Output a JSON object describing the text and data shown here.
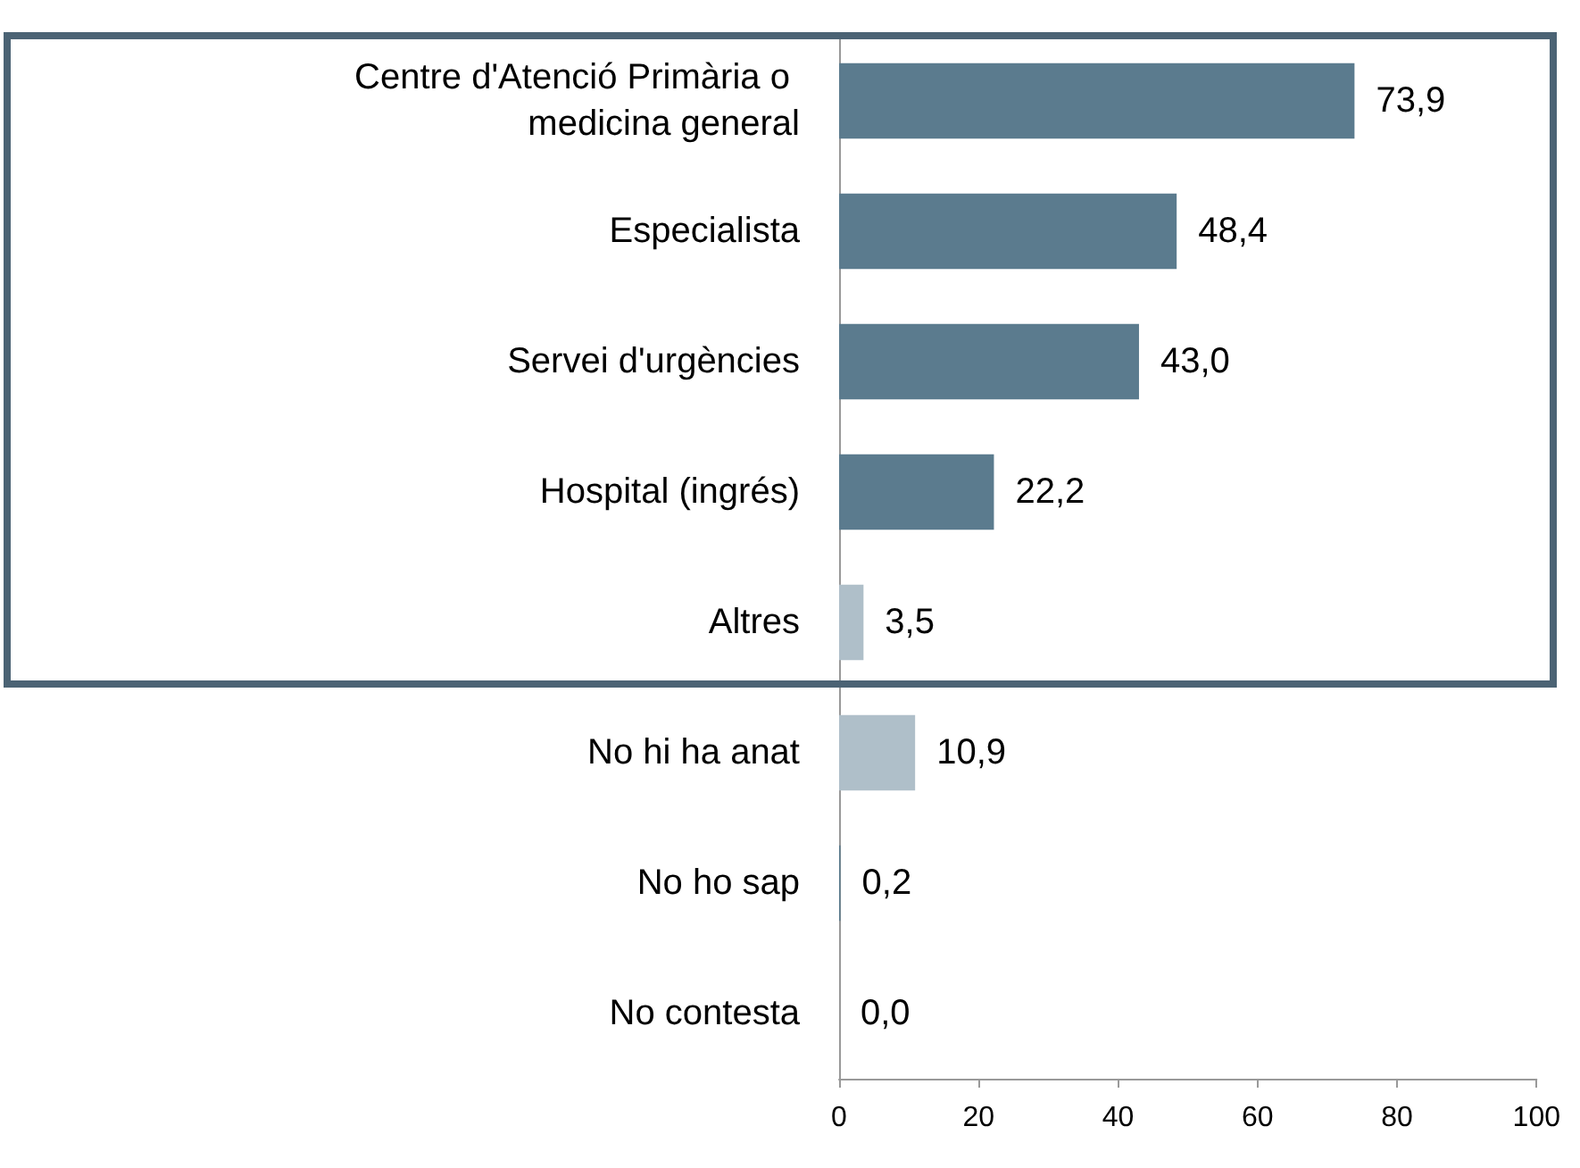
{
  "chart_data": {
    "type": "bar",
    "orientation": "horizontal",
    "categories": [
      "Centre d'Atenció Primària o medicina general",
      "Especialista",
      "Servei d'urgències",
      "Hospital (ingrés)",
      "Altres",
      "No hi ha anat",
      "No ho sap",
      "No contesta"
    ],
    "values": [
      73.9,
      48.4,
      43.0,
      22.2,
      3.5,
      10.9,
      0.2,
      0.0
    ],
    "value_labels": [
      "73,9",
      "48,4",
      "43,0",
      "22,2",
      "3,5",
      "10,9",
      "0,2",
      "0,0"
    ],
    "colors": [
      "#5b7b8e",
      "#5b7b8e",
      "#5b7b8e",
      "#5b7b8e",
      "#afbfc9",
      "#afbfc9",
      "#5b7b8e",
      "#5b7b8e"
    ],
    "xlim": [
      0,
      100
    ],
    "xticks": [
      0,
      20,
      40,
      60,
      80,
      100
    ],
    "grid": false
  }
}
